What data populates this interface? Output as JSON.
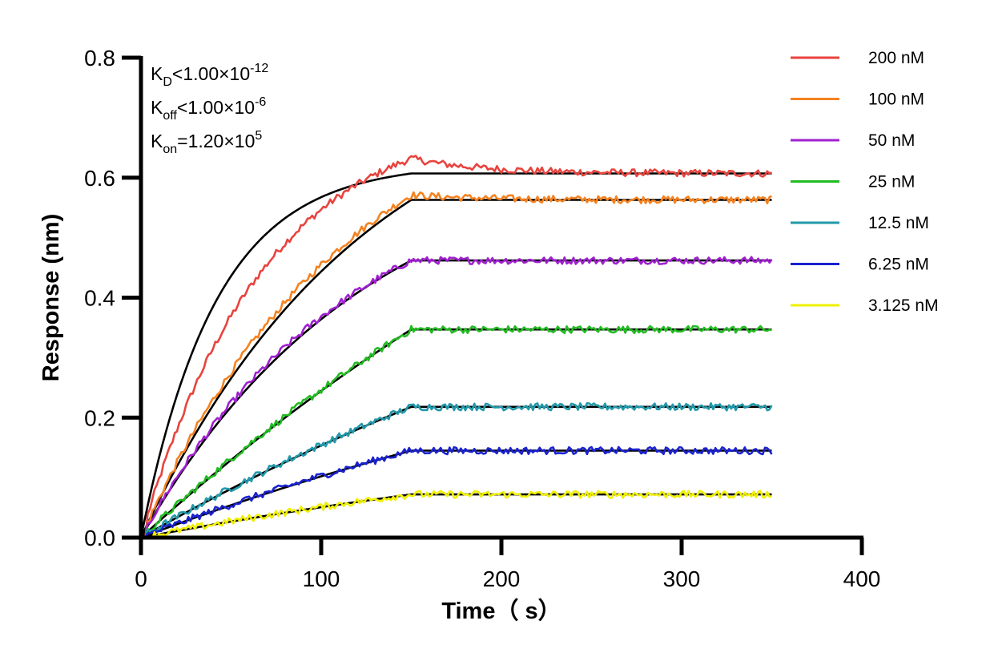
{
  "chart_data": {
    "type": "line",
    "title": "",
    "xlabel": "Time（ s）",
    "ylabel": "Response (nm)",
    "xlim": [
      0,
      400
    ],
    "ylim": [
      0,
      0.8
    ],
    "x_ticks": [
      "0",
      "100",
      "200",
      "300",
      "400"
    ],
    "y_ticks": [
      "0.0",
      "0.2",
      "0.4",
      "0.6",
      "0.8"
    ],
    "grid": false,
    "legend_position": "top-right",
    "association_end_time": 150,
    "end_time": 350,
    "annotations": [
      {
        "base": "K",
        "sub": "D",
        "rel": "<",
        "mantissa": "1.00×10",
        "exp": "-12"
      },
      {
        "base": "K",
        "sub": "off",
        "rel": "<",
        "mantissa": "1.00×10",
        "exp": "-6"
      },
      {
        "base": "K",
        "sub": "on",
        "rel": "=",
        "mantissa": "1.20×10",
        "exp": "5"
      }
    ],
    "fit_color": "#000000",
    "series": [
      {
        "name": "200 nM",
        "color": "#e8433e",
        "plateau": 0.607,
        "fit_shape": "exponential",
        "overshoot": 0.025,
        "peak_time": 160
      },
      {
        "name": "100 nM",
        "color": "#f58220",
        "plateau": 0.563,
        "fit_shape": "near-linear",
        "overshoot": 0.008,
        "peak_time": 152
      },
      {
        "name": "50 nM",
        "color": "#a020d0",
        "plateau": 0.462,
        "fit_shape": "near-linear",
        "overshoot": 0.0,
        "peak_time": 150
      },
      {
        "name": "25 nM",
        "color": "#22bb22",
        "plateau": 0.347,
        "fit_shape": "linear",
        "overshoot": 0.0,
        "peak_time": 150
      },
      {
        "name": "12.5 nM",
        "color": "#2299aa",
        "plateau": 0.218,
        "fit_shape": "linear",
        "overshoot": 0.0,
        "peak_time": 150
      },
      {
        "name": "6.25 nM",
        "color": "#1a22d0",
        "plateau": 0.145,
        "fit_shape": "linear",
        "overshoot": 0.0,
        "peak_time": 150
      },
      {
        "name": "3.125 nM",
        "color": "#f0f000",
        "plateau": 0.072,
        "fit_shape": "linear",
        "overshoot": 0.0,
        "peak_time": 150
      }
    ]
  }
}
